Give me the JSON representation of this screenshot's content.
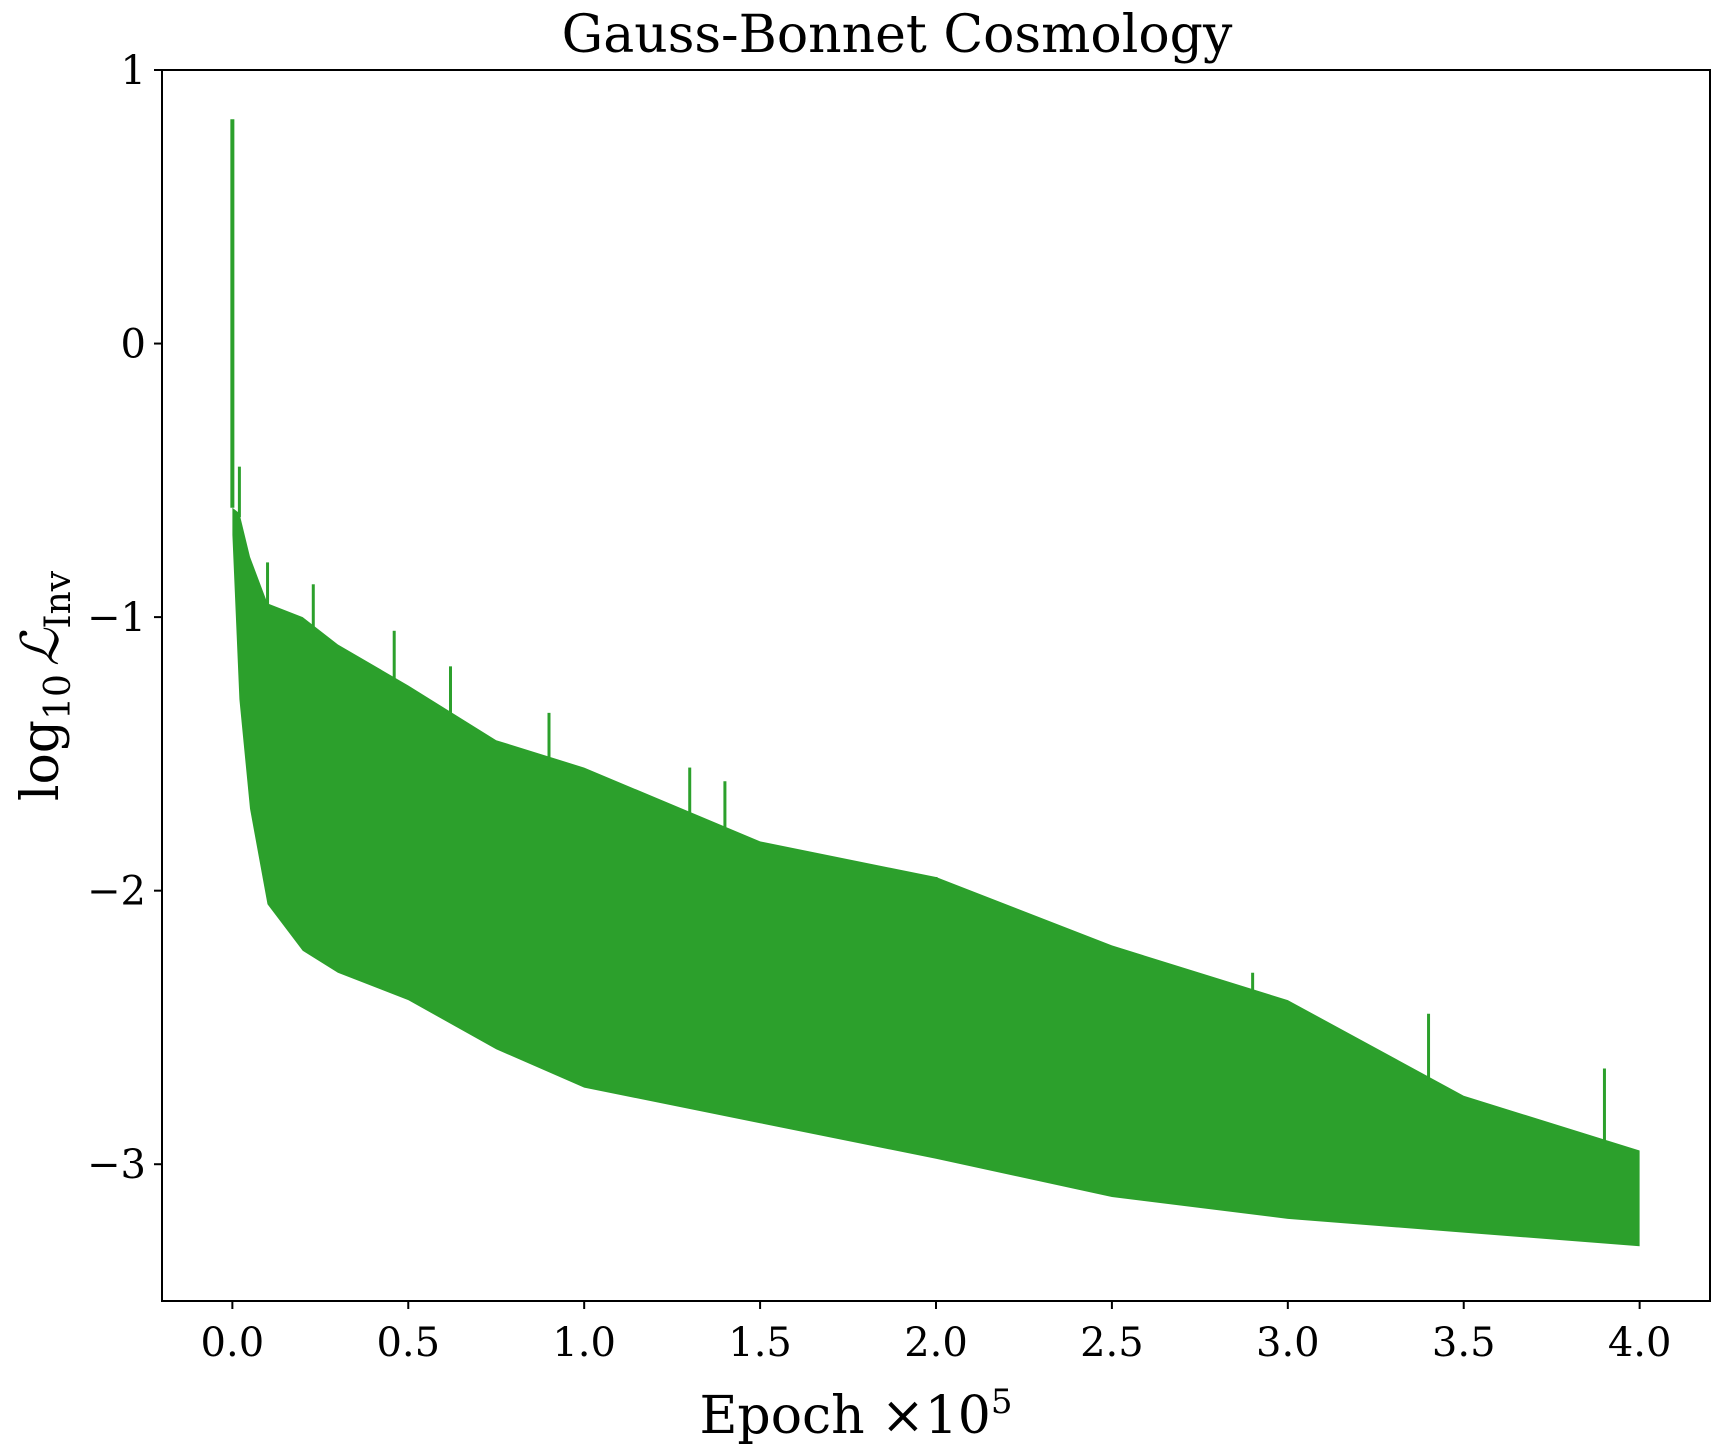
{
  "chart_data": {
    "type": "line",
    "title": "Gauss-Bonnet Cosmology",
    "xlabel": "Epoch ×10",
    "xlabel_exponent": "5",
    "ylabel_prefix": "log",
    "ylabel_sub": "10",
    "ylabel_symbol": "ℒ",
    "ylabel_symbol_sub": "Inv",
    "xlim": [
      -0.2,
      4.2
    ],
    "ylim": [
      -3.5,
      1.0
    ],
    "xticks": [
      0.0,
      0.5,
      1.0,
      1.5,
      2.0,
      2.5,
      3.0,
      3.5,
      4.0
    ],
    "xtick_labels": [
      "0.0",
      "0.5",
      "1.0",
      "1.5",
      "2.0",
      "2.5",
      "3.0",
      "3.5",
      "4.0"
    ],
    "yticks": [
      1,
      0,
      -1,
      -2,
      -3
    ],
    "ytick_labels": [
      "1",
      "0",
      "−1",
      "−2",
      "−3"
    ],
    "grid": false,
    "series": [
      {
        "color": "#2ca02c",
        "initial_value": {
          "x": 0.0,
          "y": 0.82
        },
        "x": [
          0.0,
          0.02,
          0.05,
          0.1,
          0.2,
          0.3,
          0.5,
          0.75,
          1.0,
          1.5,
          2.0,
          2.5,
          3.0,
          3.5,
          4.0
        ],
        "upper": [
          -0.6,
          -0.62,
          -0.78,
          -0.95,
          -1.0,
          -1.1,
          -1.25,
          -1.45,
          -1.55,
          -1.82,
          -1.95,
          -2.2,
          -2.4,
          -2.75,
          -2.95
        ],
        "lower": [
          -0.7,
          -1.3,
          -1.7,
          -2.05,
          -2.22,
          -2.3,
          -2.4,
          -2.58,
          -2.72,
          -2.85,
          -2.98,
          -3.12,
          -3.2,
          -3.25,
          -3.3
        ],
        "spikes_up": [
          {
            "x": 0.02,
            "y": -0.45
          },
          {
            "x": 0.1,
            "y": -0.8
          },
          {
            "x": 0.23,
            "y": -0.88
          },
          {
            "x": 0.46,
            "y": -1.05
          },
          {
            "x": 0.62,
            "y": -1.18
          },
          {
            "x": 0.9,
            "y": -1.35
          },
          {
            "x": 1.3,
            "y": -1.55
          },
          {
            "x": 1.4,
            "y": -1.6
          },
          {
            "x": 2.0,
            "y": -1.95
          },
          {
            "x": 2.9,
            "y": -2.3
          },
          {
            "x": 3.4,
            "y": -2.45
          },
          {
            "x": 3.9,
            "y": -2.65
          }
        ]
      }
    ]
  }
}
